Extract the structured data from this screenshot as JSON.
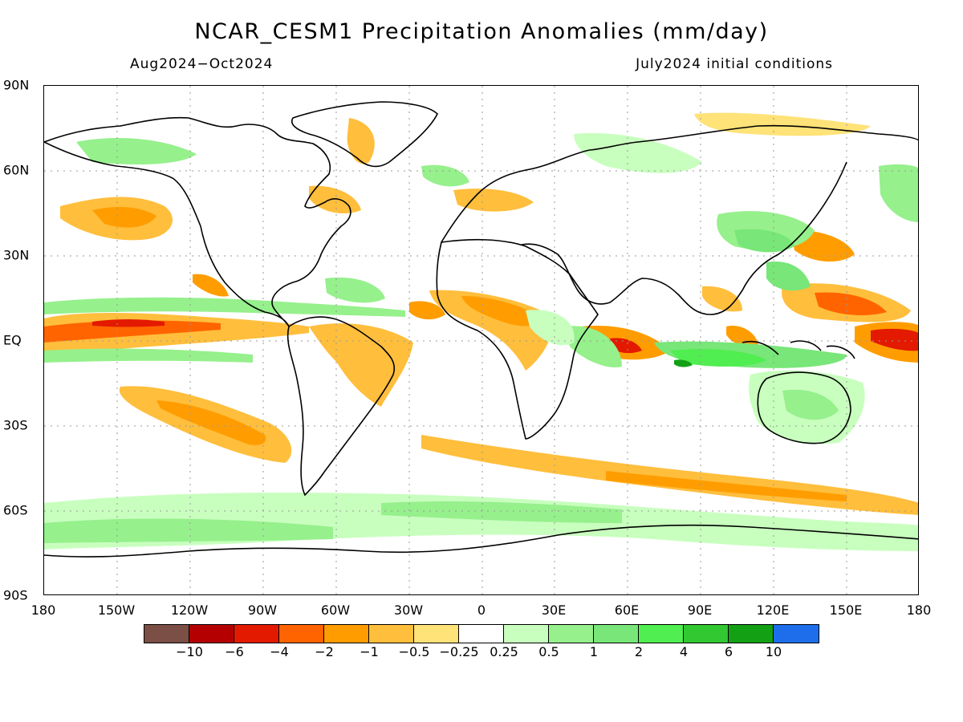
{
  "title": "NCAR_CESM1 Precipitation Anomalies (mm/day)",
  "subtitle_left": "Aug2024−Oct2024",
  "subtitle_right": "July2024 initial conditions",
  "lat_labels": [
    "90N",
    "60N",
    "30N",
    "EQ",
    "30S",
    "60S",
    "90S"
  ],
  "lon_labels": [
    "180",
    "150W",
    "120W",
    "90W",
    "60W",
    "30W",
    "0",
    "30E",
    "60E",
    "90E",
    "120E",
    "150E",
    "180"
  ],
  "colorbar": {
    "colors": [
      "#7b4f45",
      "#b40000",
      "#e31a00",
      "#ff6400",
      "#ff9d00",
      "#ffbe3c",
      "#ffe278",
      "#ffffff",
      "#c8ffbe",
      "#96f08c",
      "#78e678",
      "#50ee50",
      "#32c832",
      "#14a014",
      "#1e6eeb"
    ],
    "labels": [
      "−10",
      "−6",
      "−4",
      "−2",
      "−1",
      "−0.5",
      "−0.25",
      "0.25",
      "0.5",
      "1",
      "2",
      "4",
      "6",
      "10"
    ]
  }
}
